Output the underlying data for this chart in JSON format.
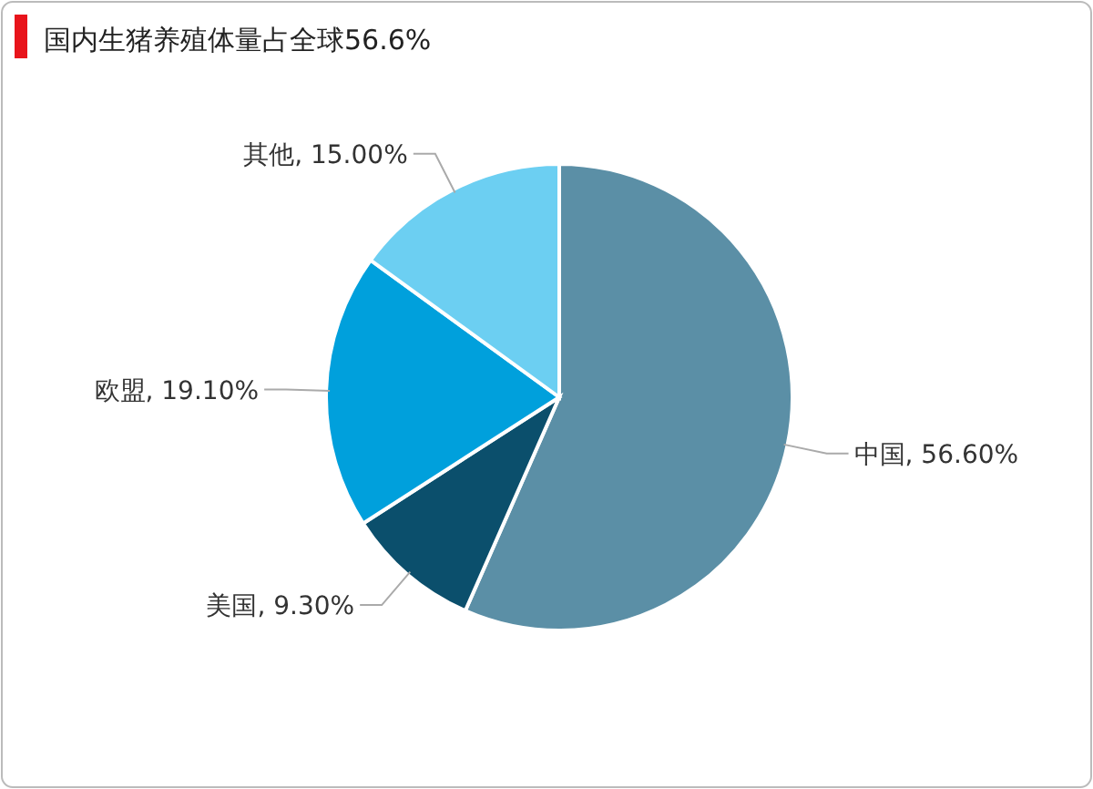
{
  "chart_data": {
    "type": "pie",
    "title": "国内生猪养殖体量占全球56.6%",
    "categories": [
      "中国",
      "美国",
      "欧盟",
      "其他"
    ],
    "values": [
      56.6,
      9.3,
      19.1,
      15.0
    ],
    "value_labels": [
      "56.60%",
      "9.30%",
      "19.10%",
      "15.00%"
    ],
    "colors": [
      "#5b8fa6",
      "#0b4f6c",
      "#00a0dc",
      "#6ccff2"
    ]
  }
}
